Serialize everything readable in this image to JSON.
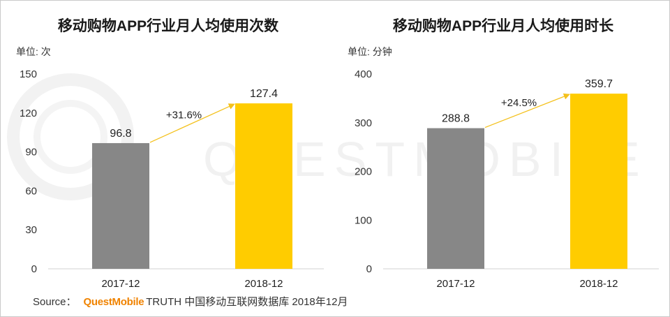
{
  "watermark": {
    "text": "QUESTMOBILE",
    "logo_icon": "questmobile-q-logo-icon"
  },
  "colors": {
    "bar_2017": "#878787",
    "bar_2018": "#FFCC00",
    "growth_arrow": "#F4C11C",
    "axis": "#d2d2d2",
    "brand": "#F08300",
    "watermark": "#F1F1F1"
  },
  "footer": {
    "source_label": "Source：",
    "brand": "QuestMobile",
    "text": "TRUTH 中国移动互联网数据库 2018年12月"
  },
  "chart_data": [
    {
      "type": "bar",
      "title": "移动购物APP行业月人均使用次数",
      "unit_label": "单位: 次",
      "categories": [
        "2017-12",
        "2018-12"
      ],
      "values": [
        96.8,
        127.4
      ],
      "ylim": [
        0,
        150
      ],
      "yticks": [
        0,
        30,
        60,
        90,
        120,
        150
      ],
      "growth_label": "+31.6%",
      "grid": false,
      "legend": false
    },
    {
      "type": "bar",
      "title": "移动购物APP行业月人均使用时长",
      "unit_label": "单位: 分钟",
      "categories": [
        "2017-12",
        "2018-12"
      ],
      "values": [
        288.8,
        359.7
      ],
      "ylim": [
        0,
        400
      ],
      "yticks": [
        0,
        100,
        200,
        300,
        400
      ],
      "growth_label": "+24.5%",
      "grid": false,
      "legend": false
    }
  ]
}
